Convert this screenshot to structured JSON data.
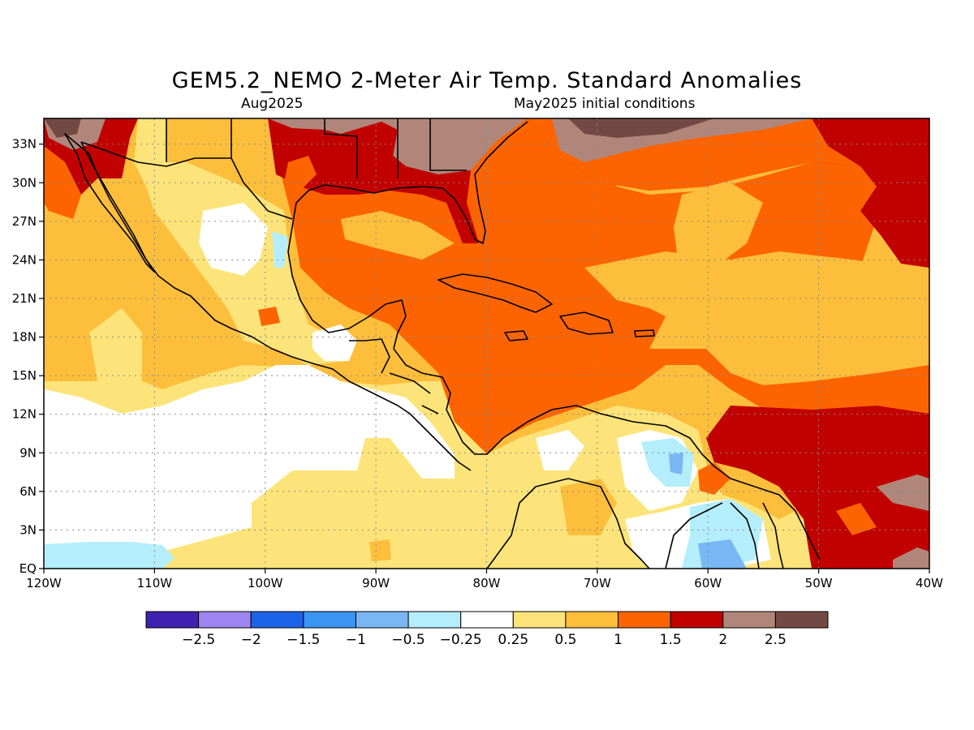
{
  "title": "GEM5.2_NEMO 2-Meter Air Temp. Standard Anomalies",
  "valid_period": "Aug2025",
  "initial_conditions": "May2025 initial conditions",
  "x_ticks": [
    "120W",
    "110W",
    "100W",
    "90W",
    "80W",
    "70W",
    "60W",
    "50W",
    "40W"
  ],
  "y_ticks": [
    "EQ",
    "3N",
    "6N",
    "9N",
    "12N",
    "15N",
    "18N",
    "21N",
    "24N",
    "27N",
    "30N",
    "33N"
  ],
  "colorbar": {
    "colors": [
      "#3e21b0",
      "#9d86f2",
      "#1c63e8",
      "#3b95f3",
      "#78b7f4",
      "#b4eefc",
      "#ffffff",
      "#fde47a",
      "#fdbe3b",
      "#fd6400",
      "#c10000",
      "#b0867a",
      "#734a43"
    ],
    "labels": [
      "−2.5",
      "−2",
      "−1.5",
      "−1",
      "−0.5",
      "−0.25",
      "0.25",
      "0.5",
      "1",
      "1.5",
      "2",
      "2.5"
    ]
  },
  "map_data": {
    "lon_range": [
      -120,
      -40
    ],
    "lat_range": [
      0,
      35
    ],
    "field": "2-meter air temperature standard anomaly",
    "dominant_regions": [
      {
        "region": "Caribbean Sea",
        "category": "1 to 1.5"
      },
      {
        "region": "Gulf of Mexico",
        "category": "1 to 1.5"
      },
      {
        "region": "Southeastern United States",
        "category": "1.5 to 2.5"
      },
      {
        "region": "Subtropical Atlantic",
        "category": "0.5 to 2"
      },
      {
        "region": "Eastern Pacific off Central America",
        "category": "-0.25 to 0.5"
      },
      {
        "region": "Northern South America interior",
        "category": "-1 to 0.5"
      }
    ]
  }
}
